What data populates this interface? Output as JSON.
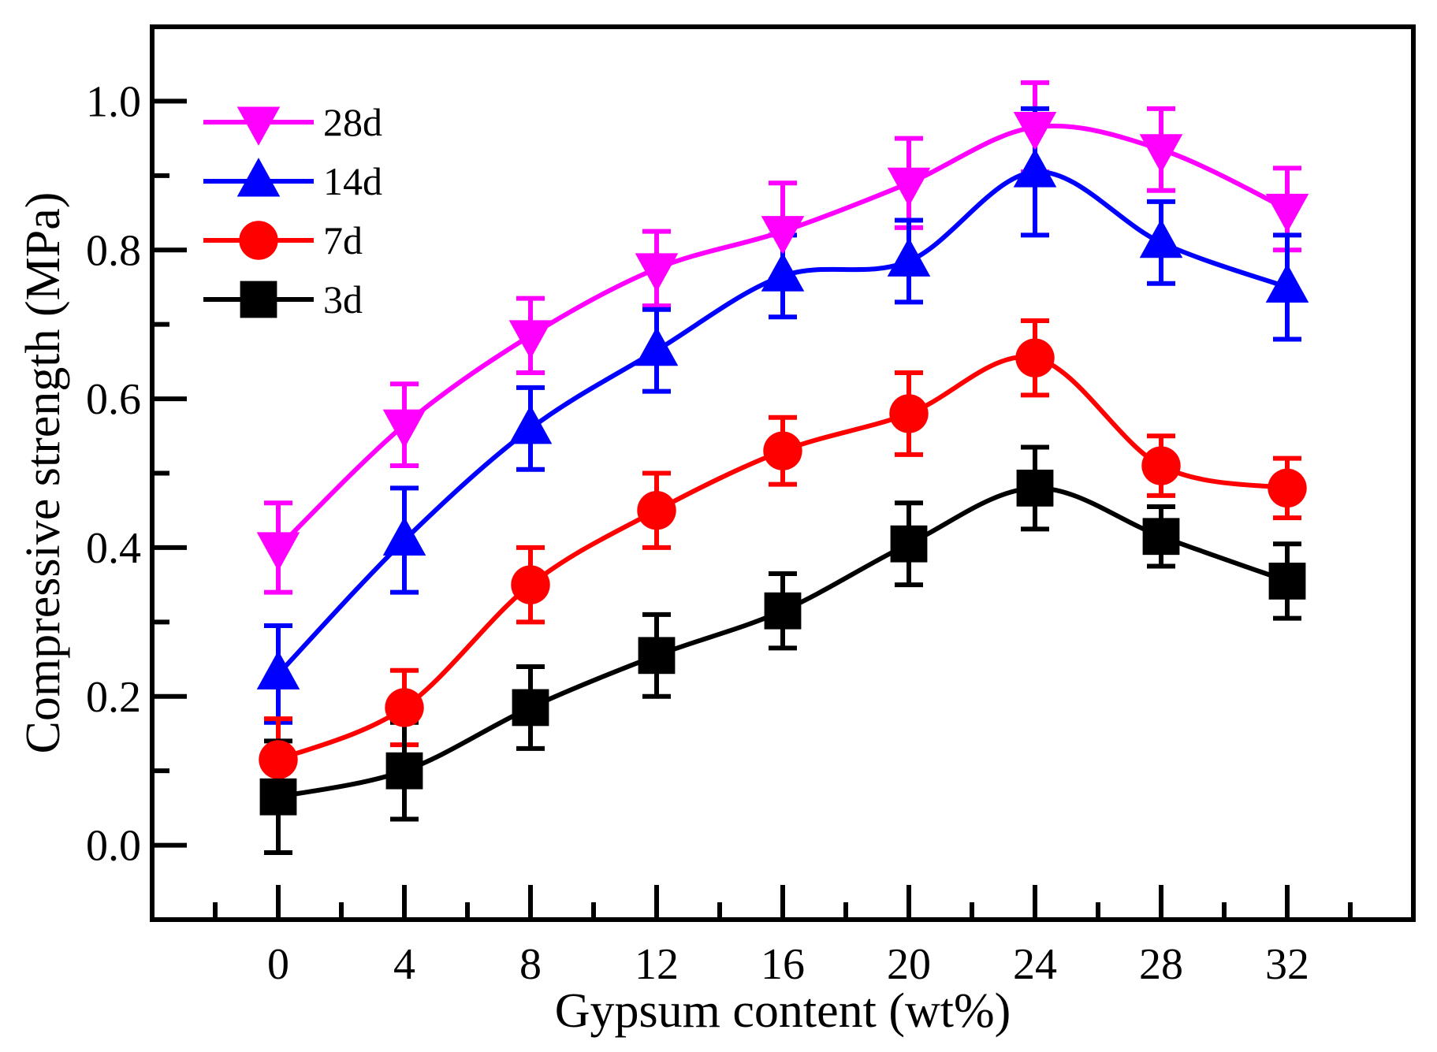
{
  "chart_data": {
    "type": "line",
    "xlabel": "Gypsum content (wt%)",
    "ylabel": "Compressive strength (MPa)",
    "xlim": [
      -4,
      36
    ],
    "ylim": [
      -0.1,
      1.1
    ],
    "x": [
      0,
      4,
      8,
      12,
      16,
      20,
      24,
      28,
      32
    ],
    "xticks": [
      0,
      4,
      8,
      12,
      16,
      20,
      24,
      28,
      32
    ],
    "xtick_labels": [
      "0",
      "4",
      "8",
      "12",
      "16",
      "20",
      "24",
      "28",
      "32"
    ],
    "yticks": [
      0.0,
      0.2,
      0.4,
      0.6,
      0.8,
      1.0
    ],
    "ytick_labels": [
      "0.0",
      "0.2",
      "0.4",
      "0.6",
      "0.8",
      "1.0"
    ],
    "grid": false,
    "legend_position": "top-left",
    "series": [
      {
        "name": "28d",
        "color": "#ff00ff",
        "marker": "triangle-down",
        "values": [
          0.4,
          0.565,
          0.685,
          0.775,
          0.825,
          0.89,
          0.965,
          0.935,
          0.855
        ],
        "errors": [
          0.06,
          0.055,
          0.05,
          0.05,
          0.065,
          0.06,
          0.06,
          0.055,
          0.055
        ]
      },
      {
        "name": "14d",
        "color": "#0000ff",
        "marker": "triangle-up",
        "values": [
          0.23,
          0.41,
          0.56,
          0.665,
          0.765,
          0.785,
          0.905,
          0.81,
          0.75
        ],
        "errors": [
          0.065,
          0.07,
          0.055,
          0.055,
          0.055,
          0.055,
          0.085,
          0.055,
          0.07
        ]
      },
      {
        "name": "7d",
        "color": "#ff0000",
        "marker": "circle",
        "values": [
          0.115,
          0.185,
          0.35,
          0.45,
          0.53,
          0.58,
          0.655,
          0.51,
          0.48
        ],
        "errors": [
          0.055,
          0.05,
          0.05,
          0.05,
          0.045,
          0.055,
          0.05,
          0.04,
          0.04
        ]
      },
      {
        "name": "3d",
        "color": "#000000",
        "marker": "square",
        "values": [
          0.065,
          0.1,
          0.185,
          0.255,
          0.315,
          0.405,
          0.48,
          0.415,
          0.355
        ],
        "errors": [
          0.075,
          0.065,
          0.055,
          0.055,
          0.05,
          0.055,
          0.055,
          0.04,
          0.05
        ]
      }
    ]
  }
}
